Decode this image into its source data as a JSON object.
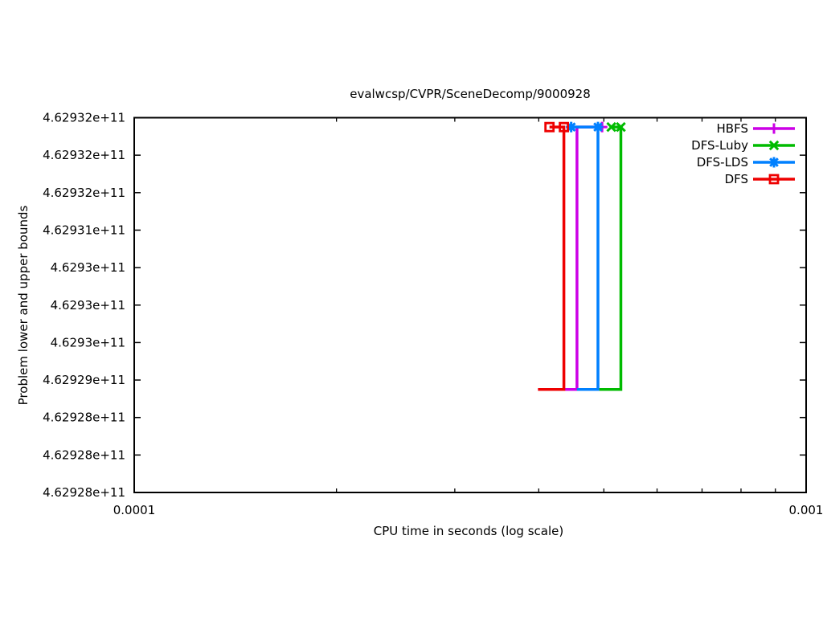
{
  "chart_data": {
    "type": "line",
    "title": "evalwcsp/CVPR/SceneDecomp/9000928",
    "xlabel": "CPU time in seconds (log scale)",
    "ylabel": "Problem lower and upper bounds",
    "x_scale": "log",
    "grid": false,
    "xlim": [
      0.0001,
      0.001
    ],
    "ylim": [
      462928000000,
      462932000000
    ],
    "x_major_ticks": [
      {
        "value": 0.0001,
        "label": "0.0001"
      },
      {
        "value": 0.001,
        "label": "0.001"
      }
    ],
    "x_minor_ticks": [
      0.0002,
      0.0003,
      0.0004,
      0.0005,
      0.0006,
      0.0007,
      0.0008,
      0.0009
    ],
    "y_tick_labels_top_to_bottom": [
      "4.62932e+11",
      "4.62932e+11",
      "4.62932e+11",
      "4.62931e+11",
      "4.6293e+11",
      "4.6293e+11",
      "4.6293e+11",
      "4.62929e+11",
      "4.62928e+11",
      "4.62928e+11",
      "4.62928e+11"
    ],
    "bounds": {
      "lower_bound": 462929100000,
      "upper_bound": 462931900000
    },
    "series": [
      {
        "name": "HBFS",
        "color": "#cc00e6",
        "marker": "plus",
        "x": [
          0.000399,
          0.000456,
          0.000456,
          0.000497
        ],
        "y": [
          462929100000,
          462929100000,
          462931900000,
          462931900000
        ],
        "marker_points": [
          [
            0.000497,
            462931900000
          ]
        ]
      },
      {
        "name": "DFS-Luby",
        "color": "#00bb00",
        "marker": "cross",
        "x": [
          0.000456,
          0.00053,
          0.00053,
          0.000513
        ],
        "y": [
          462929100000,
          462929100000,
          462931900000,
          462931900000
        ],
        "marker_points": [
          [
            0.000513,
            462931900000
          ],
          [
            0.00053,
            462931900000
          ]
        ]
      },
      {
        "name": "DFS-LDS",
        "color": "#0080ff",
        "marker": "asterisk",
        "x": [
          0.000456,
          0.00049,
          0.00049,
          0.000447
        ],
        "y": [
          462929100000,
          462929100000,
          462931900000,
          462931900000
        ],
        "marker_points": [
          [
            0.000447,
            462931900000
          ],
          [
            0.00049,
            462931900000
          ]
        ]
      },
      {
        "name": "DFS",
        "color": "#ee0000",
        "marker": "square",
        "x": [
          0.000399,
          0.000436,
          0.000436,
          0.000415
        ],
        "y": [
          462929100000,
          462929100000,
          462931900000,
          462931900000
        ],
        "marker_points": [
          [
            0.000415,
            462931900000
          ],
          [
            0.000436,
            462931900000
          ]
        ]
      }
    ],
    "legend": {
      "position": "top-right",
      "entries": [
        "HBFS",
        "DFS-Luby",
        "DFS-LDS",
        "DFS"
      ]
    }
  }
}
